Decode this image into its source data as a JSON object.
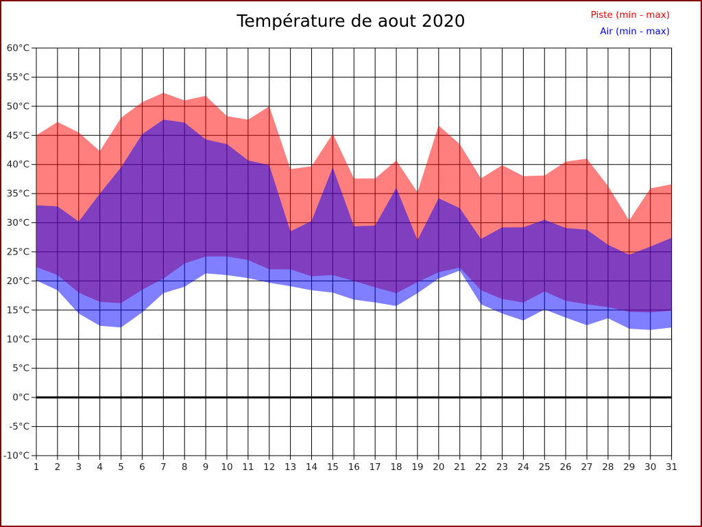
{
  "title": "Température de aout 2020",
  "legend": [
    {
      "label": "Piste (min - max)",
      "color": "#ff0000"
    },
    {
      "label": "Air (min - max)",
      "color": "#0000ff"
    }
  ],
  "chart_data": {
    "type": "area",
    "title": "Température de aout 2020",
    "xlabel": "",
    "ylabel": "°C",
    "x": [
      1,
      2,
      3,
      4,
      5,
      6,
      7,
      8,
      9,
      10,
      11,
      12,
      13,
      14,
      15,
      16,
      17,
      18,
      19,
      20,
      21,
      22,
      23,
      24,
      25,
      26,
      27,
      28,
      29,
      30,
      31
    ],
    "xlim": [
      1,
      31
    ],
    "ylim": [
      -10,
      60
    ],
    "ytick_step": 5,
    "ytick_suffix": "°C",
    "grid": true,
    "zero_line": true,
    "legend_position": "top-right",
    "series": [
      {
        "name": "Piste (min - max)",
        "color": "#ff0000",
        "fill_opacity": 0.5,
        "max": [
          45,
          47.3,
          45.5,
          42.3,
          48,
          50.7,
          52.3,
          51,
          51.8,
          48.3,
          47.7,
          50,
          39.2,
          39.7,
          45.3,
          37.6,
          37.6,
          40.7,
          35.2,
          46.7,
          43.5,
          37.6,
          39.9,
          38,
          38.1,
          40.5,
          41,
          36.3,
          30.4,
          35.9,
          36.6
        ],
        "min": [
          22.4,
          21,
          18,
          16.4,
          16.2,
          18.5,
          20.4,
          23,
          24.2,
          24.2,
          23.6,
          22,
          22,
          20.8,
          21,
          20,
          18.9,
          17.9,
          19.8,
          21.5,
          22.3,
          18.4,
          16.9,
          16.3,
          18.2,
          16.6,
          16,
          15.5,
          14.7,
          14.6,
          14.9
        ]
      },
      {
        "name": "Air (min - max)",
        "color": "#0000ff",
        "fill_opacity": 0.5,
        "max": [
          33,
          32.8,
          30.2,
          35,
          39.5,
          45.2,
          47.7,
          47.2,
          44.3,
          43.5,
          40.7,
          39.9,
          28.5,
          30.3,
          39.5,
          29.4,
          29.5,
          36,
          27,
          34.2,
          32.5,
          27.2,
          29.2,
          29.2,
          30.5,
          29.1,
          28.8,
          26.2,
          24.5,
          25.9,
          27.4
        ],
        "min": [
          20.1,
          18.4,
          14.4,
          12.3,
          12,
          14.6,
          17.9,
          19,
          21.3,
          21,
          20.5,
          19.7,
          19.1,
          18.4,
          18,
          16.8,
          16.3,
          15.7,
          17.9,
          20.4,
          21.8,
          16,
          14.4,
          13.2,
          15.1,
          13.7,
          12.4,
          13.6,
          11.8,
          11.6,
          12
        ]
      }
    ]
  }
}
